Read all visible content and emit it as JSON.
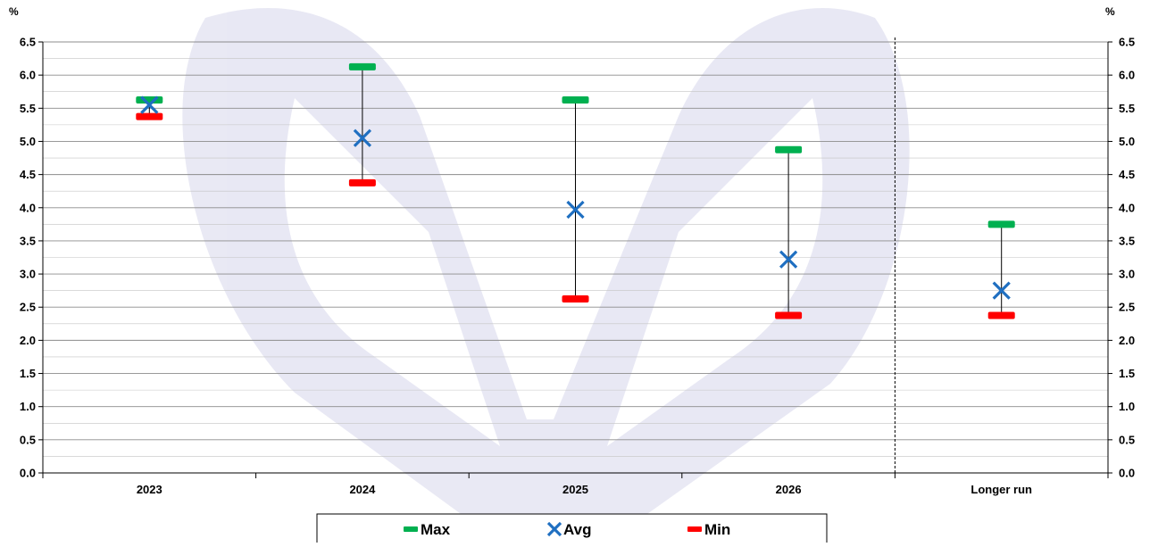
{
  "chart_data": {
    "type": "range",
    "unit_left": "%",
    "unit_right": "%",
    "categories": [
      "2023",
      "2024",
      "2025",
      "2026",
      "Longer run"
    ],
    "ylim": [
      0,
      6.5
    ],
    "y_ticks": [
      "0.0",
      "0.5",
      "1.0",
      "1.5",
      "2.0",
      "2.5",
      "3.0",
      "3.5",
      "4.0",
      "4.5",
      "5.0",
      "5.5",
      "6.0",
      "6.5"
    ],
    "series": [
      {
        "name": "Max",
        "marker": "dash",
        "color": "#00b050",
        "values": [
          5.625,
          6.125,
          5.625,
          4.875,
          3.75
        ]
      },
      {
        "name": "Avg",
        "marker": "x",
        "color": "#1f6fc1",
        "values": [
          5.55,
          5.05,
          3.97,
          3.22,
          2.75
        ]
      },
      {
        "name": "Min",
        "marker": "dash",
        "color": "#ff0000",
        "values": [
          5.375,
          4.375,
          2.625,
          2.375,
          2.375
        ]
      }
    ],
    "gridlines": true,
    "separator_before": "Longer run",
    "legend_position": "bottom"
  }
}
